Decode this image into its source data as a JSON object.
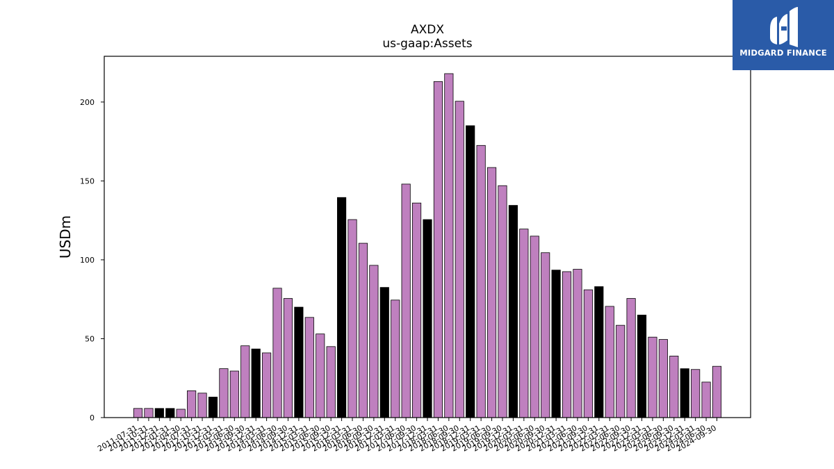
{
  "header": {
    "title": "AXDX",
    "subtitle": "us-gaap:Assets"
  },
  "logo": {
    "text": "MIDGARD FINANCE",
    "icon": "midgard-logo-icon"
  },
  "colors": {
    "bar_default": "#bf80bf",
    "bar_highlight": "#000000",
    "logo_bg": "#2a5ba8"
  },
  "chart_data": {
    "type": "bar",
    "title": "AXDX",
    "subtitle": "us-gaap:Assets",
    "xlabel": "",
    "ylabel": "USDm",
    "ylim": [
      0,
      229
    ],
    "yticks": [
      0,
      50,
      100,
      150,
      200
    ],
    "grid": false,
    "categories": [
      "2011-07-31",
      "2011-10-31",
      "2011-12-31",
      "2012-01-31",
      "2012-04-30",
      "2012-07-31",
      "2012-10-31",
      "2012-12-31",
      "2013-03-31",
      "2013-06-30",
      "2013-09-30",
      "2013-12-31",
      "2014-03-31",
      "2014-06-30",
      "2014-09-30",
      "2014-12-31",
      "2015-03-31",
      "2015-06-30",
      "2015-09-30",
      "2015-12-31",
      "2016-03-31",
      "2016-06-30",
      "2016-09-30",
      "2016-12-31",
      "2017-03-31",
      "2017-06-30",
      "2017-09-30",
      "2017-12-31",
      "2018-03-31",
      "2018-06-30",
      "2018-09-30",
      "2018-12-31",
      "2019-03-31",
      "2019-06-30",
      "2019-09-30",
      "2019-12-31",
      "2020-03-31",
      "2020-06-30",
      "2020-09-30",
      "2020-12-31",
      "2021-03-31",
      "2021-06-30",
      "2021-09-30",
      "2021-12-31",
      "2022-03-31",
      "2022-06-30",
      "2022-09-30",
      "2022-12-31",
      "2023-03-31",
      "2023-06-30",
      "2023-09-30",
      "2023-12-31",
      "2024-03-31",
      "2024-06-30",
      "2024-09-30"
    ],
    "values": [
      5.8,
      5.8,
      5.8,
      5.8,
      5.3,
      17,
      15.5,
      13,
      31,
      29.5,
      45.5,
      43.5,
      41,
      82,
      75.5,
      70,
      63.5,
      53,
      45,
      139.5,
      125.5,
      110.5,
      96.5,
      82.5,
      74.5,
      148,
      136,
      125.5,
      213,
      218,
      200.5,
      185,
      172.5,
      158.5,
      147,
      134.5,
      119.5,
      115,
      104.5,
      93.5,
      92.5,
      94,
      81,
      83,
      70.5,
      58.5,
      75.5,
      65,
      51,
      49.5,
      39,
      31,
      30.5,
      22.5,
      32.5
    ],
    "highlight": [
      false,
      false,
      true,
      true,
      false,
      false,
      false,
      true,
      false,
      false,
      false,
      true,
      false,
      false,
      false,
      true,
      false,
      false,
      false,
      true,
      false,
      false,
      false,
      true,
      false,
      false,
      false,
      true,
      false,
      false,
      false,
      true,
      false,
      false,
      false,
      true,
      false,
      false,
      false,
      true,
      false,
      false,
      false,
      true,
      false,
      false,
      false,
      true,
      false,
      false,
      false,
      true,
      false,
      false,
      false
    ]
  }
}
